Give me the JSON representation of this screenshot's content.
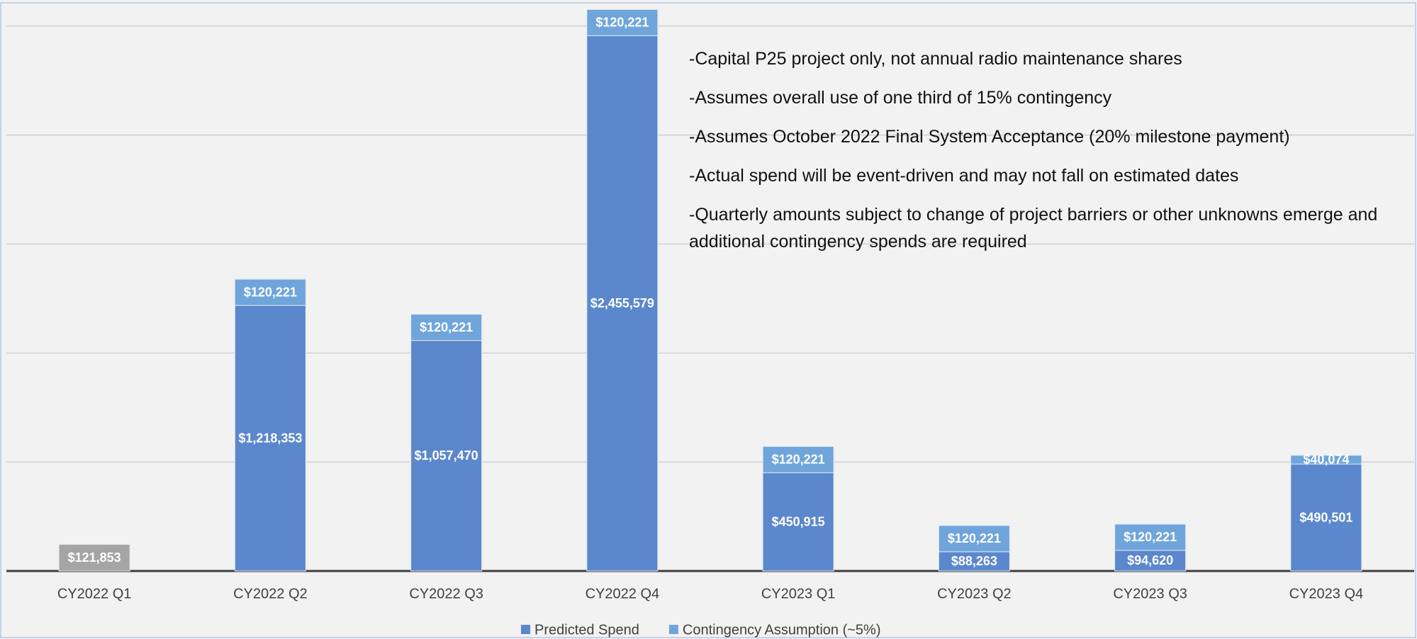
{
  "chart_data": {
    "type": "stacked_bar",
    "categories": [
      "CY2022 Q1",
      "CY2022 Q2",
      "CY2022 Q3",
      "CY2022 Q4",
      "CY2023 Q1",
      "CY2023 Q2",
      "CY2023 Q3",
      "CY2023 Q4"
    ],
    "series": [
      {
        "name": "Predicted Spend",
        "color": "#5b87cc",
        "colors": [
          "#a5a5a5",
          "#5b87cc",
          "#5b87cc",
          "#5b87cc",
          "#5b87cc",
          "#5b87cc",
          "#5b87cc",
          "#5b87cc"
        ],
        "values": [
          121853,
          1218353,
          1057470,
          2455579,
          450915,
          88263,
          94620,
          490501
        ],
        "value_labels": [
          "$121,853",
          "$1,218,353",
          "$1,057,470",
          "$2,455,579",
          "$450,915",
          "$88,263",
          "$94,620",
          "$490,501"
        ]
      },
      {
        "name": "Contingency Assumption (~5%)",
        "color": "#6fa5db",
        "values": [
          null,
          120221,
          120221,
          120221,
          120221,
          120221,
          120221,
          40074
        ],
        "value_labels": [
          null,
          "$120,221",
          "$120,221",
          "$120,221",
          "$120,221",
          "$120,221",
          "$120,221",
          "$40,074"
        ]
      }
    ],
    "ylim": [
      0,
      2600000
    ],
    "yticks": [
      0,
      500000,
      1000000,
      1500000,
      2000000,
      2500000
    ],
    "grid": true,
    "legend": "bottom",
    "annotations": [
      "-Capital P25 project only, not annual radio maintenance shares",
      "-Assumes overall use of one third of 15% contingency",
      "-Assumes October 2022 Final System Acceptance (20% milestone payment)",
      "-Actual spend will be event-driven and may not fall on estimated dates",
      "-Quarterly amounts subject to change of project barriers or other unknowns emerge and additional contingency spends are required"
    ]
  }
}
